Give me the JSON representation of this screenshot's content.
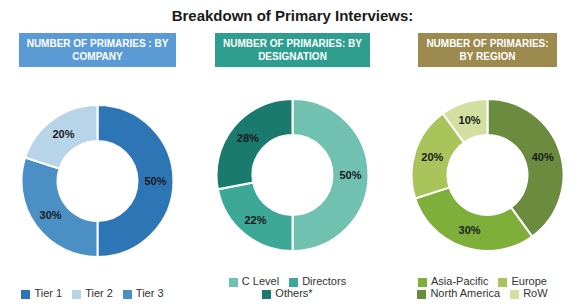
{
  "title": "Breakdown of Primary Interviews:",
  "chart_data": [
    {
      "type": "donut",
      "title": "NUMBER OF PRIMARIES : BY\nCOMPANY",
      "color": "#5B9BD5",
      "categories": [
        "Tier 1",
        "Tier 3",
        "Tier 2"
      ],
      "values": [
        50,
        30,
        20
      ],
      "value_labels": [
        "50%",
        "30%",
        "20%"
      ],
      "colors": [
        "#2E75B6",
        "#4A90C4",
        "#B8D4E8"
      ],
      "data_labels": true,
      "legend": "bottom"
    },
    {
      "type": "donut",
      "title": "NUMBER OF PRIMARIES: BY\nDESIGNATION",
      "color": "#2E9E8F",
      "categories": [
        "C Level",
        "Directors",
        "Others*"
      ],
      "values": [
        50,
        22,
        28
      ],
      "value_labels": [
        "50%",
        "22%",
        "28%"
      ],
      "colors": [
        "#70C1B0",
        "#3DA898",
        "#1A7A6E"
      ],
      "data_labels": true,
      "legend": "bottom"
    },
    {
      "type": "donut",
      "title": "NUMBER OF PRIMARIES:\nBY REGION",
      "color": "#9C8A4E",
      "categories": [
        "North America",
        "Asia-Pacific",
        "Europe",
        "RoW"
      ],
      "values": [
        40,
        30,
        20,
        10
      ],
      "value_labels": [
        "40%",
        "30%",
        "20%",
        "10%"
      ],
      "colors": [
        "#6B8C3E",
        "#7DAF3A",
        "#A8C45A",
        "#D2DFA0"
      ],
      "data_labels": true,
      "legend": "bottom"
    }
  ]
}
